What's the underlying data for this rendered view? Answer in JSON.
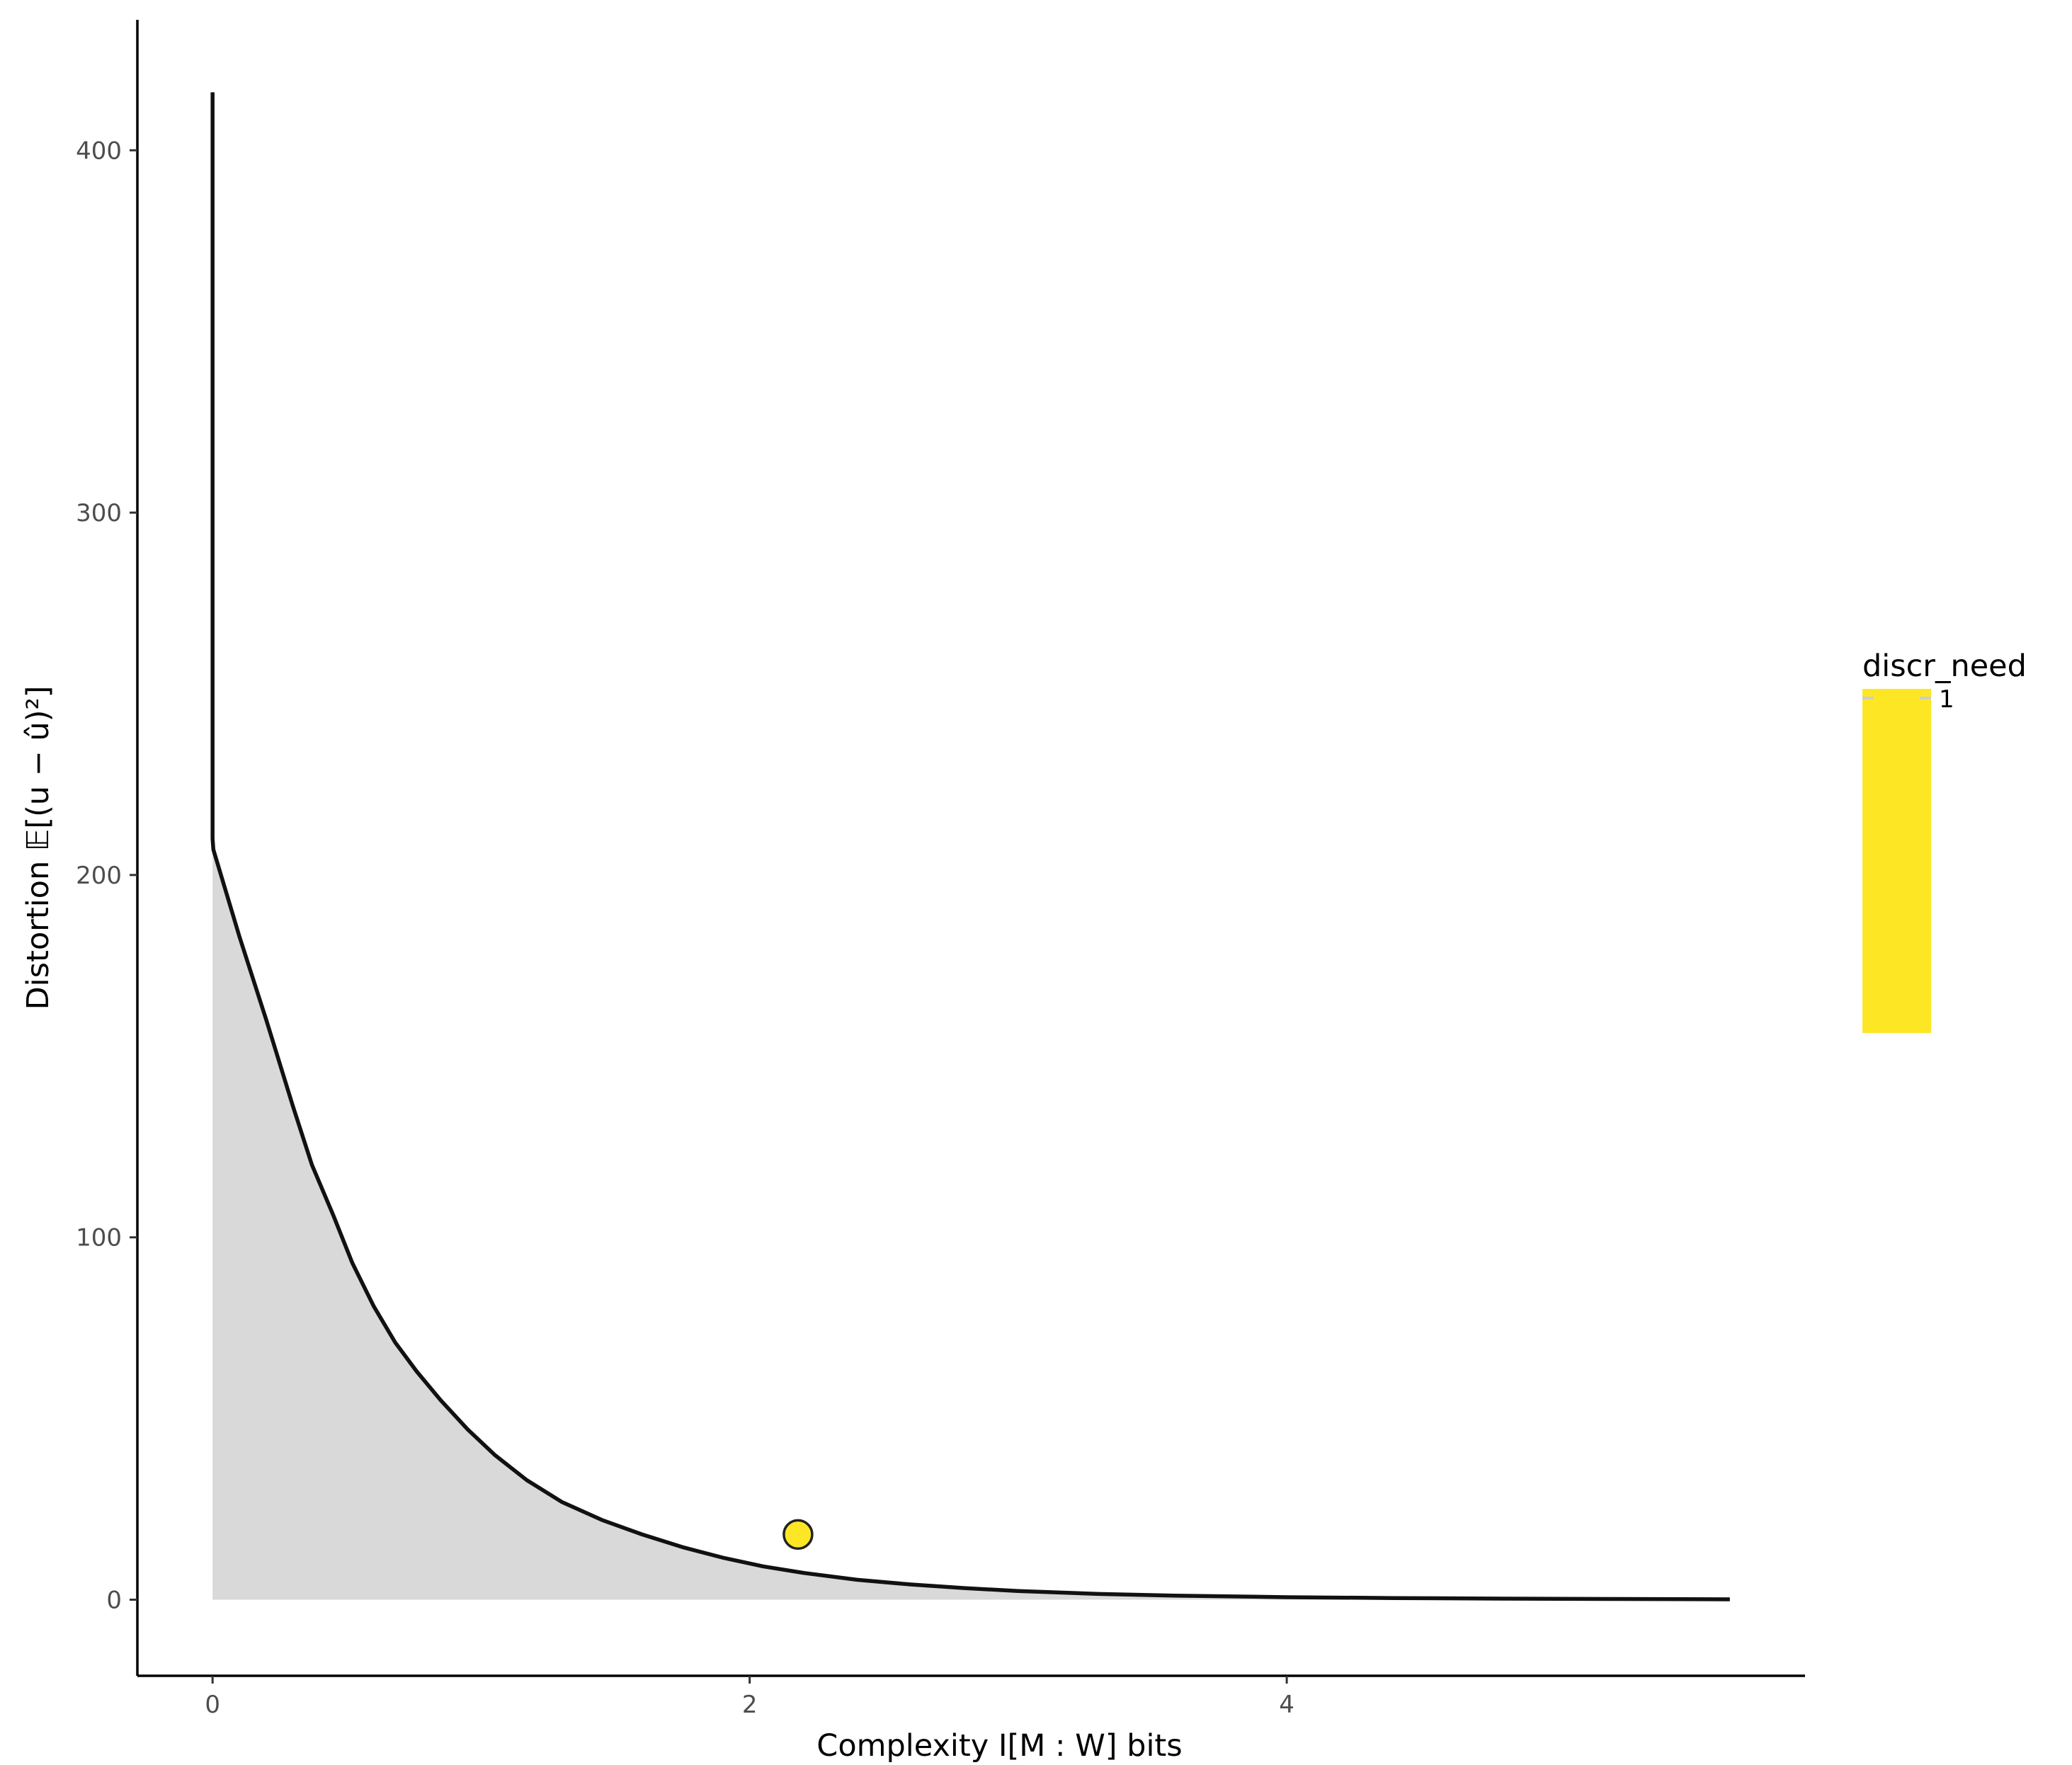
{
  "chart_data": {
    "type": "area",
    "title": "",
    "xlabel": "Complexity I[M : W] bits",
    "ylabel": "Distortion 𝔼[(u − û)²]",
    "xlim": [
      -0.28,
      5.93
    ],
    "ylim": [
      -21,
      436
    ],
    "x_ticks": [
      0,
      2,
      4
    ],
    "x_tick_labels": [
      "0",
      "2",
      "4"
    ],
    "y_ticks": [
      0,
      100,
      200,
      300,
      400
    ],
    "y_tick_labels": [
      "0",
      "100",
      "200",
      "300",
      "400"
    ],
    "grid": false,
    "series": [
      {
        "kind": "curve",
        "x": [
          0,
          0,
          0.003,
          0.1,
          0.2,
          0.3,
          0.37,
          0.45,
          0.52,
          0.6,
          0.68,
          0.76,
          0.85,
          0.95,
          1.05,
          1.17,
          1.3,
          1.45,
          1.6,
          1.75,
          1.9,
          2.05,
          2.2,
          2.4,
          2.6,
          2.8,
          3.0,
          3.3,
          3.6,
          4.0,
          4.4,
          4.8,
          5.2,
          5.65
        ],
        "y": [
          416,
          210,
          207,
          183,
          160,
          136,
          120,
          106,
          93,
          81,
          71,
          63,
          55,
          47,
          40,
          33,
          27,
          22,
          18,
          14.5,
          11.6,
          9.2,
          7.4,
          5.5,
          4.2,
          3.2,
          2.4,
          1.6,
          1.1,
          0.7,
          0.45,
          0.3,
          0.2,
          0.1
        ],
        "color": "#111111",
        "fill": "#d9d9d9"
      },
      {
        "kind": "point",
        "x": [
          2.18
        ],
        "y": [
          18
        ],
        "color": "#fde725",
        "stroke": "#222222"
      }
    ],
    "legend": {
      "title": "discr_need",
      "labels": [
        "1"
      ],
      "colors": [
        "#fde725"
      ],
      "position": "right"
    }
  }
}
